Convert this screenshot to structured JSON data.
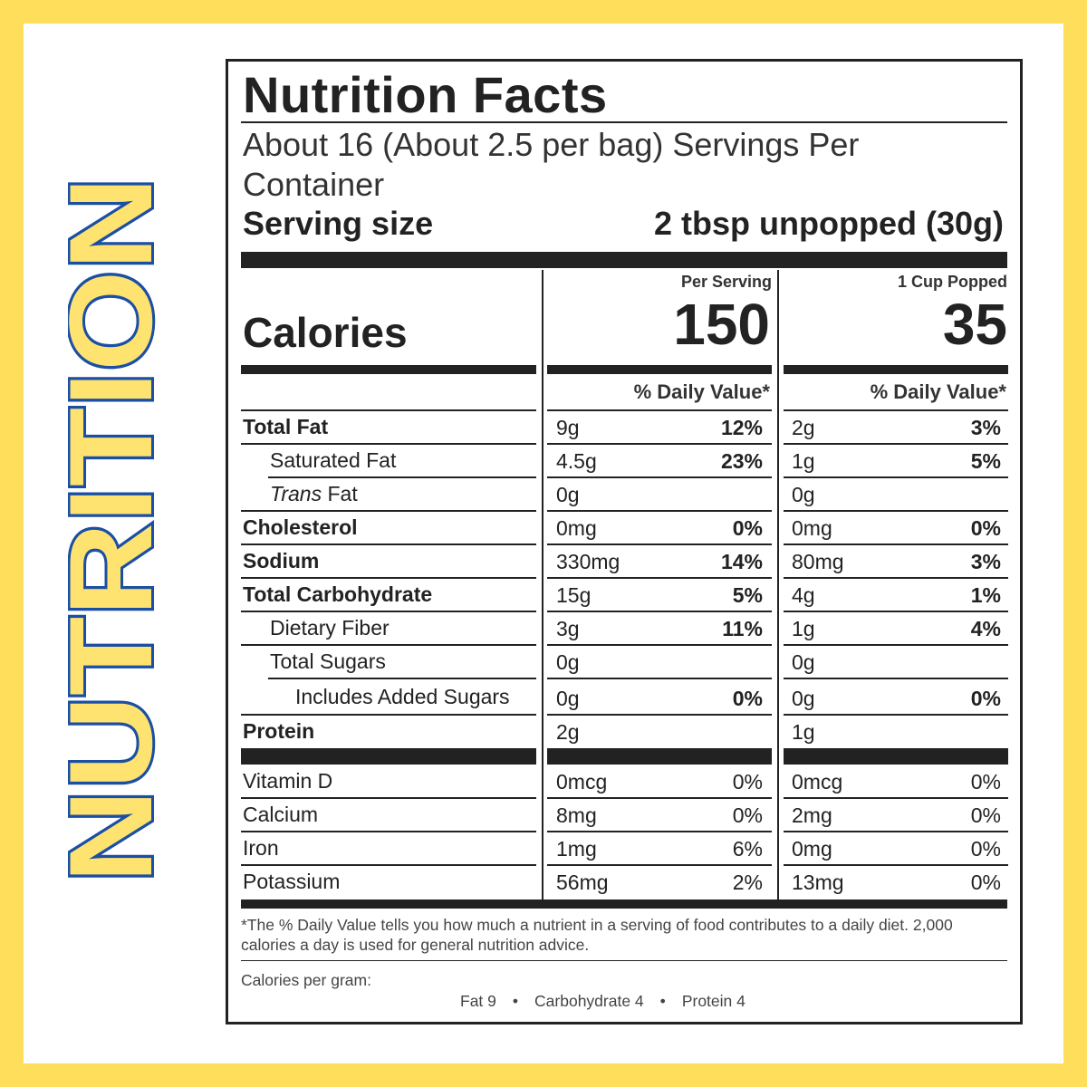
{
  "side_title": "NUTRITION",
  "colors": {
    "background": "#ffde5c",
    "panel": "#ffffff",
    "side_title_fill": "#ffe370",
    "side_title_stroke": "#1a4fa3",
    "ink": "#222222"
  },
  "label": {
    "title": "Nutrition Facts",
    "servings_per_container": "About 16 (About 2.5 per bag) Servings Per Container",
    "serving_size_label": "Serving size",
    "serving_size_value": "2 tbsp unpopped (30g)",
    "columns": [
      {
        "heading": "Per Serving",
        "calories": "150",
        "dv_heading": "% Daily Value*"
      },
      {
        "heading": "1 Cup Popped",
        "calories": "35",
        "dv_heading": "% Daily Value*"
      }
    ],
    "calories_label": "Calories",
    "nutrients": [
      {
        "name": "Total Fat",
        "c1_amount": "9g",
        "c1_dv": "12%",
        "c2_amount": "2g",
        "c2_dv": "3%"
      },
      {
        "name": "Saturated Fat",
        "c1_amount": "4.5g",
        "c1_dv": "23%",
        "c2_amount": "1g",
        "c2_dv": "5%"
      },
      {
        "name_italic": "Trans",
        "name_rest": " Fat",
        "c1_amount": "0g",
        "c1_dv": "",
        "c2_amount": "0g",
        "c2_dv": ""
      },
      {
        "name": "Cholesterol",
        "c1_amount": "0mg",
        "c1_dv": "0%",
        "c2_amount": "0mg",
        "c2_dv": "0%"
      },
      {
        "name": "Sodium",
        "c1_amount": "330mg",
        "c1_dv": "14%",
        "c2_amount": "80mg",
        "c2_dv": "3%"
      },
      {
        "name": "Total Carbohydrate",
        "c1_amount": "15g",
        "c1_dv": "5%",
        "c2_amount": "4g",
        "c2_dv": "1%"
      },
      {
        "name": "Dietary Fiber",
        "c1_amount": "3g",
        "c1_dv": "11%",
        "c2_amount": "1g",
        "c2_dv": "4%"
      },
      {
        "name": "Total Sugars",
        "c1_amount": "0g",
        "c1_dv": "",
        "c2_amount": "0g",
        "c2_dv": ""
      },
      {
        "name": "Includes Added Sugars",
        "c1_amount": "0g",
        "c1_dv": "0%",
        "c2_amount": "0g",
        "c2_dv": "0%"
      },
      {
        "name": "Protein",
        "c1_amount": "2g",
        "c1_dv": "",
        "c2_amount": "1g",
        "c2_dv": ""
      }
    ],
    "vitamins": [
      {
        "name": "Vitamin D",
        "c1_amount": "0mcg",
        "c1_dv": "0%",
        "c2_amount": "0mcg",
        "c2_dv": "0%"
      },
      {
        "name": "Calcium",
        "c1_amount": "8mg",
        "c1_dv": "0%",
        "c2_amount": "2mg",
        "c2_dv": "0%"
      },
      {
        "name": "Iron",
        "c1_amount": "1mg",
        "c1_dv": "6%",
        "c2_amount": "0mg",
        "c2_dv": "0%"
      },
      {
        "name": "Potassium",
        "c1_amount": "56mg",
        "c1_dv": "2%",
        "c2_amount": "13mg",
        "c2_dv": "0%"
      }
    ],
    "footnote": "*The % Daily Value tells you how much a nutrient in a serving of food contributes to a daily diet. 2,000 calories a day is used for general nutrition advice.",
    "calories_per_gram": {
      "label": "Calories per gram:",
      "fat": "Fat 9",
      "carbohydrate": "Carbohydrate 4",
      "protein": "Protein 4",
      "separator": "•"
    }
  }
}
